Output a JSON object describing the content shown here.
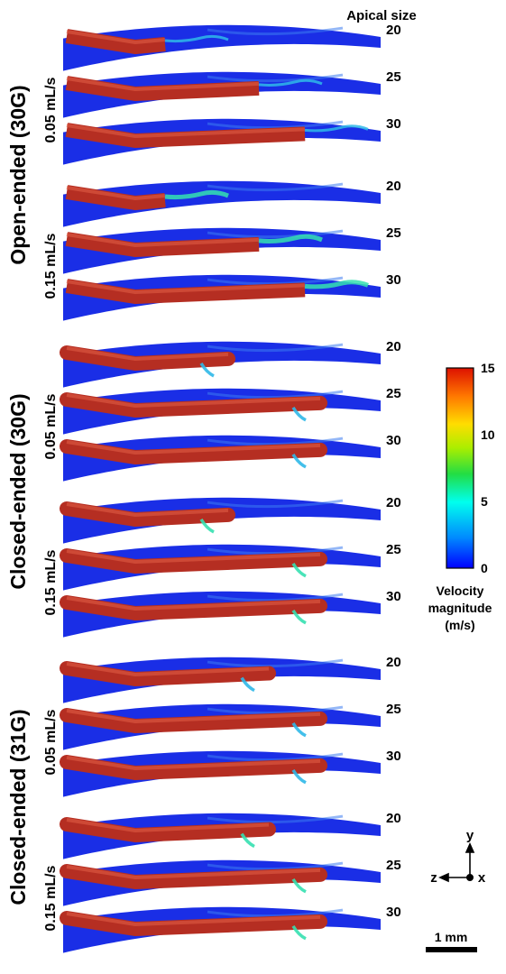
{
  "header": {
    "title": "Apical size"
  },
  "groups": [
    {
      "label": "Open-ended (30G)",
      "tip": "open",
      "rates": [
        {
          "label": "0.05 mL/s",
          "jet": "low",
          "sizes": [
            "20",
            "25",
            "30"
          ]
        },
        {
          "label": "0.15 mL/s",
          "jet": "high",
          "sizes": [
            "20",
            "25",
            "30"
          ]
        }
      ]
    },
    {
      "label": "Closed-ended (30G)",
      "tip": "closed",
      "rates": [
        {
          "label": "0.05 mL/s",
          "jet": "low",
          "sizes": [
            "20",
            "25",
            "30"
          ]
        },
        {
          "label": "0.15 mL/s",
          "jet": "high",
          "sizes": [
            "20",
            "25",
            "30"
          ]
        }
      ]
    },
    {
      "label": "Closed-ended (31G)",
      "tip": "closed",
      "rates": [
        {
          "label": "0.05 mL/s",
          "jet": "low",
          "sizes": [
            "20",
            "25",
            "30"
          ]
        },
        {
          "label": "0.15 mL/s",
          "jet": "high",
          "sizes": [
            "20",
            "25",
            "30"
          ]
        }
      ]
    }
  ],
  "colorbar": {
    "title_lines": [
      "Velocity",
      "magnitude",
      "(m/s)"
    ],
    "min": 0,
    "max": 15,
    "ticks": [
      "15",
      "10",
      "5",
      "0"
    ],
    "colors": [
      "#0000ff",
      "#00aaff",
      "#00ffcc",
      "#33dd33",
      "#ccee00",
      "#ffcc00",
      "#ff6600",
      "#dd1100"
    ]
  },
  "axes": {
    "y": "y",
    "z": "z",
    "x": "x"
  },
  "scale_bar": {
    "label": "1 mm"
  },
  "colors": {
    "canal": "#1a2ee6",
    "canal_light": "#3d7cf0",
    "needle": "#b52e22",
    "needle_highlight": "#d8553f",
    "jet_low": "#2fb8e8",
    "jet_high": "#35e0b0"
  }
}
